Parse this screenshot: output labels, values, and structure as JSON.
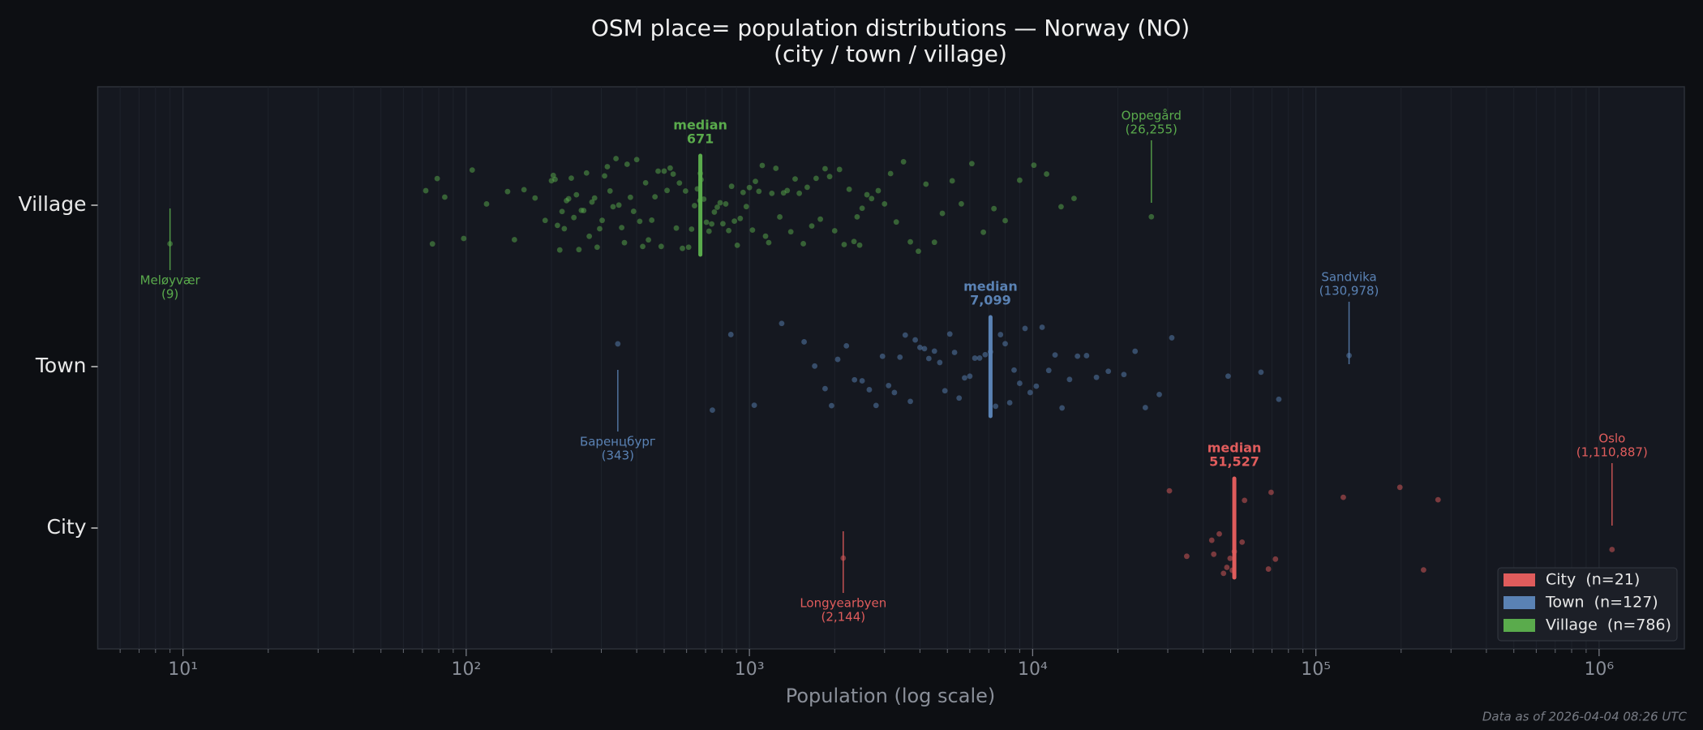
{
  "chart_data": {
    "type": "strip",
    "title": "OSM place= population distributions — Norway (NO)",
    "subtitle": "(city / town / village)",
    "x_label": "Population (log scale)",
    "footer": "Data as of 2026-04-04 08:26 UTC",
    "median_text": "median",
    "log_x": true,
    "grid": true,
    "legend": "lower right",
    "xlim": [
      5,
      2000000
    ],
    "xticks": [
      {
        "value": 10,
        "label": "10¹"
      },
      {
        "value": 100,
        "label": "10²"
      },
      {
        "value": 1000,
        "label": "10³"
      },
      {
        "value": 10000,
        "label": "10⁴"
      },
      {
        "value": 100000,
        "label": "10⁵"
      },
      {
        "value": 1000000,
        "label": "10⁶"
      }
    ],
    "minor_xticks": [
      6,
      7,
      8,
      9,
      20,
      30,
      40,
      50,
      60,
      70,
      80,
      90,
      200,
      300,
      400,
      500,
      600,
      700,
      800,
      900,
      2000,
      3000,
      4000,
      5000,
      6000,
      7000,
      8000,
      9000,
      20000,
      30000,
      40000,
      50000,
      60000,
      70000,
      80000,
      90000,
      200000,
      300000,
      400000,
      500000,
      600000,
      700000,
      800000,
      900000
    ],
    "series": [
      {
        "name": "City",
        "legend_label": "City  (n=21)",
        "color": "#e05c5c",
        "median": {
          "value": 51527,
          "label": "51,527"
        },
        "annotations": [
          {
            "name": "Longyearbyen",
            "value": 2144,
            "label": "(2,144)"
          },
          {
            "name": "Oslo",
            "value": 1110887,
            "label": "(1,110,887)"
          }
        ],
        "values": [
          2144,
          30400,
          35000,
          42900,
          43600,
          45600,
          47200,
          48500,
          49800,
          50700,
          51527,
          54900,
          56000,
          68000,
          69500,
          72000,
          125000,
          198000,
          240000,
          270000,
          1110887
        ]
      },
      {
        "name": "Town",
        "legend_label": "Town  (n=127)",
        "color": "#5a82b4",
        "median": {
          "value": 7099,
          "label": "7,099"
        },
        "annotations": [
          {
            "name": "Баренцбург",
            "value": 343,
            "label": "(343)"
          },
          {
            "name": "Sandvika",
            "value": 130978,
            "label": "(130,978)"
          }
        ],
        "values": [
          343,
          740,
          860,
          1040,
          1300,
          1560,
          1700,
          1850,
          1950,
          2050,
          2200,
          2350,
          2500,
          2650,
          2800,
          2950,
          3100,
          3250,
          3400,
          3550,
          3700,
          3850,
          4000,
          4150,
          4300,
          4500,
          4700,
          4900,
          5100,
          5300,
          5500,
          5750,
          6000,
          6250,
          6500,
          6800,
          7099,
          7400,
          7700,
          8000,
          8300,
          8600,
          9000,
          9400,
          9800,
          10300,
          10800,
          11400,
          12000,
          12700,
          13500,
          14400,
          15500,
          16800,
          18500,
          21000,
          23000,
          25000,
          28000,
          31000,
          49000,
          64000,
          74000,
          130978
        ]
      },
      {
        "name": "Village",
        "legend_label": "Village  (n=786)",
        "color": "#5aab4c",
        "median": 671,
        "annotations": [
          {
            "name": "Meløyvær",
            "value": 9,
            "label": "(9)"
          },
          {
            "name": "Oppegård",
            "value": 26255,
            "label": "(26,255)"
          }
        ],
        "values": [
          9,
          72,
          76,
          79,
          84,
          98,
          105,
          118,
          140,
          148,
          160,
          175,
          190,
          200,
          203,
          206,
          210,
          214,
          218,
          222,
          226,
          230,
          235,
          240,
          245,
          250,
          255,
          260,
          266,
          272,
          278,
          284,
          290,
          296,
          302,
          308,
          315,
          322,
          330,
          338,
          346,
          354,
          362,
          370,
          380,
          390,
          400,
          410,
          420,
          430,
          440,
          452,
          464,
          476,
          488,
          500,
          512,
          525,
          538,
          552,
          566,
          580,
          595,
          610,
          625,
          640,
          655,
          668,
          671,
          675,
          690,
          705,
          720,
          736,
          752,
          770,
          788,
          806,
          825,
          845,
          865,
          885,
          906,
          928,
          950,
          975,
          1000,
          1025,
          1050,
          1080,
          1110,
          1140,
          1170,
          1200,
          1240,
          1280,
          1320,
          1360,
          1400,
          1450,
          1500,
          1550,
          1600,
          1660,
          1720,
          1780,
          1850,
          1920,
          2000,
          2080,
          2160,
          2250,
          2340,
          2400,
          2450,
          2500,
          2600,
          2700,
          2850,
          3000,
          3150,
          3300,
          3500,
          3700,
          3950,
          4200,
          4500,
          4800,
          5200,
          5600,
          6100,
          6700,
          7300,
          8000,
          9000,
          10100,
          11200,
          12600,
          14000,
          26255
        ]
      }
    ]
  }
}
